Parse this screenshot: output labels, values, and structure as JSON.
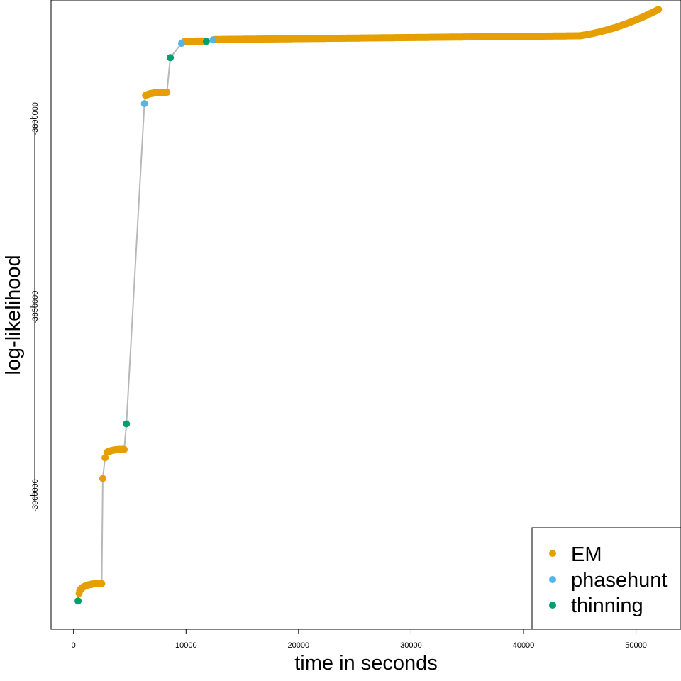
{
  "chart_data": {
    "type": "scatter",
    "title": "",
    "xlabel": "time in seconds",
    "ylabel": "log-likelihood",
    "xlim": [
      -2000,
      54000
    ],
    "ylim": [
      -3935500,
      -3768500
    ],
    "xticks": [
      0,
      10000,
      20000,
      30000,
      40000,
      50000
    ],
    "yticks": [
      -3800000,
      -3850000,
      -3900000
    ],
    "xtick_labels": [
      "0",
      "10000",
      "20000",
      "30000",
      "40000",
      "50000"
    ],
    "ytick_labels": [
      "-3800000",
      "-3850000",
      "-3900000"
    ],
    "grid": false,
    "legend_position": "bottom-right",
    "connector_color": "#b8b8b8",
    "series": [
      {
        "name": "EM",
        "color": "#E69F00",
        "segments": [
          {
            "x0": 500,
            "x1": 700,
            "y0": -3926000,
            "y1": -3924800,
            "n": 5
          },
          {
            "x0": 700,
            "x1": 2500,
            "y0": -3924600,
            "y1": -3923400,
            "n": 60
          },
          {
            "x0": 2600,
            "x1": 2650,
            "y0": -3895500,
            "y1": -3895500,
            "n": 1
          },
          {
            "x0": 2800,
            "x1": 2850,
            "y0": -3890000,
            "y1": -3890000,
            "n": 1
          },
          {
            "x0": 3000,
            "x1": 4500,
            "y0": -3888500,
            "y1": -3887800,
            "n": 50
          },
          {
            "x0": 6400,
            "x1": 8300,
            "y0": -3793800,
            "y1": -3793000,
            "n": 60
          },
          {
            "x0": 9800,
            "x1": 11600,
            "y0": -3779600,
            "y1": -3779400,
            "n": 60
          },
          {
            "x0": 12500,
            "x1": 45000,
            "y0": -3779000,
            "y1": -3778000,
            "n": 400,
            "curve": "linear"
          },
          {
            "x0": 45000,
            "x1": 52000,
            "y0": -3778000,
            "y1": -3771000,
            "n": 120,
            "curve": "quad"
          }
        ]
      },
      {
        "name": "phasehunt",
        "color": "#56B4E9",
        "points": [
          {
            "x": 6300,
            "y": -3796000
          },
          {
            "x": 9600,
            "y": -3780000
          },
          {
            "x": 12400,
            "y": -3779100
          }
        ]
      },
      {
        "name": "thinning",
        "color": "#009E73",
        "points": [
          {
            "x": 400,
            "y": -3928000
          },
          {
            "x": 4700,
            "y": -3881000
          },
          {
            "x": 8600,
            "y": -3783800
          },
          {
            "x": 11800,
            "y": -3779500
          }
        ]
      }
    ],
    "legend": [
      "EM",
      "phasehunt",
      "thinning"
    ]
  }
}
